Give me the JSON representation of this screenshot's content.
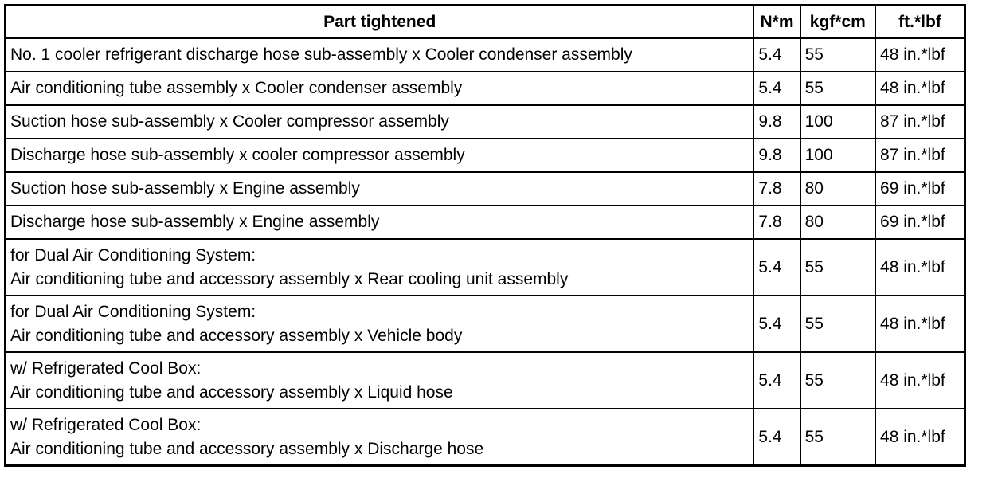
{
  "headers": [
    "Part tightened",
    "N*m",
    "kgf*cm",
    "ft.*lbf"
  ],
  "rows": [
    {
      "part": [
        "No. 1 cooler refrigerant discharge hose sub-assembly x Cooler condenser assembly"
      ],
      "nm": "5.4",
      "kgf": "55",
      "ftlbf": "48 in.*lbf"
    },
    {
      "part": [
        "Air conditioning tube assembly x Cooler condenser assembly"
      ],
      "nm": "5.4",
      "kgf": "55",
      "ftlbf": "48 in.*lbf"
    },
    {
      "part": [
        "Suction hose sub-assembly x Cooler compressor assembly"
      ],
      "nm": "9.8",
      "kgf": "100",
      "ftlbf": "87 in.*lbf"
    },
    {
      "part": [
        "Discharge hose sub-assembly x cooler compressor assembly"
      ],
      "nm": "9.8",
      "kgf": "100",
      "ftlbf": "87 in.*lbf"
    },
    {
      "part": [
        "Suction hose sub-assembly x Engine assembly"
      ],
      "nm": "7.8",
      "kgf": "80",
      "ftlbf": "69 in.*lbf"
    },
    {
      "part": [
        "Discharge hose sub-assembly x Engine assembly"
      ],
      "nm": "7.8",
      "kgf": "80",
      "ftlbf": "69 in.*lbf"
    },
    {
      "part": [
        "for Dual Air Conditioning System:",
        "Air conditioning tube and accessory assembly x Rear cooling unit assembly"
      ],
      "nm": "5.4",
      "kgf": "55",
      "ftlbf": "48 in.*lbf"
    },
    {
      "part": [
        "for Dual Air Conditioning System:",
        "Air conditioning tube and accessory assembly x Vehicle body"
      ],
      "nm": "5.4",
      "kgf": "55",
      "ftlbf": "48 in.*lbf"
    },
    {
      "part": [
        "w/ Refrigerated Cool Box:",
        "Air conditioning tube and accessory assembly x Liquid hose"
      ],
      "nm": "5.4",
      "kgf": "55",
      "ftlbf": "48 in.*lbf"
    },
    {
      "part": [
        "w/ Refrigerated Cool Box:",
        "Air conditioning tube and accessory assembly x Discharge hose"
      ],
      "nm": "5.4",
      "kgf": "55",
      "ftlbf": "48 in.*lbf"
    }
  ]
}
